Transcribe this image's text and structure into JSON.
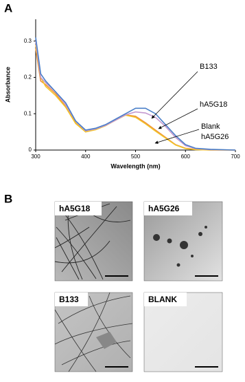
{
  "chart_data": {
    "type": "line",
    "x_label": "Wavelength (nm)",
    "y_label": "Absorbance",
    "x": [
      300,
      310,
      320,
      340,
      360,
      380,
      400,
      420,
      440,
      460,
      480,
      500,
      520,
      540,
      560,
      580,
      600,
      620,
      650,
      700
    ],
    "series": [
      {
        "name": "B133",
        "color": "#4a7fc8",
        "values": [
          0.31,
          0.21,
          0.19,
          0.16,
          0.13,
          0.08,
          0.055,
          0.06,
          0.07,
          0.085,
          0.1,
          0.115,
          0.115,
          0.1,
          0.07,
          0.04,
          0.015,
          0.005,
          0.002,
          0
        ]
      },
      {
        "name": "hA5G18",
        "color": "#c49ad0",
        "values": [
          0.3,
          0.2,
          0.185,
          0.16,
          0.125,
          0.08,
          0.053,
          0.058,
          0.068,
          0.082,
          0.097,
          0.105,
          0.102,
          0.09,
          0.065,
          0.035,
          0.012,
          0.004,
          0.001,
          0
        ]
      },
      {
        "name": "Blank",
        "color": "#ef8f3a",
        "values": [
          0.28,
          0.19,
          0.18,
          0.155,
          0.12,
          0.075,
          0.05,
          0.057,
          0.068,
          0.083,
          0.097,
          0.093,
          0.075,
          0.055,
          0.035,
          0.015,
          0.005,
          0.002,
          0,
          0
        ]
      },
      {
        "name": "hA5G26",
        "color": "#f2c42a",
        "values": [
          0.29,
          0.2,
          0.175,
          0.15,
          0.118,
          0.073,
          0.05,
          0.056,
          0.067,
          0.082,
          0.096,
          0.09,
          0.072,
          0.052,
          0.033,
          0.014,
          0.004,
          0.001,
          0,
          0
        ]
      }
    ],
    "xlim": [
      300,
      700
    ],
    "xticks": [
      300,
      400,
      500,
      600,
      700
    ],
    "ylim": [
      0,
      0.36
    ],
    "yticks": [
      0,
      0.1,
      0.2,
      0.3
    ]
  },
  "panel_labels": [
    "A",
    "B"
  ],
  "micrographs": [
    {
      "label": "hA5G18"
    },
    {
      "label": "hA5G26"
    },
    {
      "label": "B133"
    },
    {
      "label": "BLANK"
    }
  ]
}
